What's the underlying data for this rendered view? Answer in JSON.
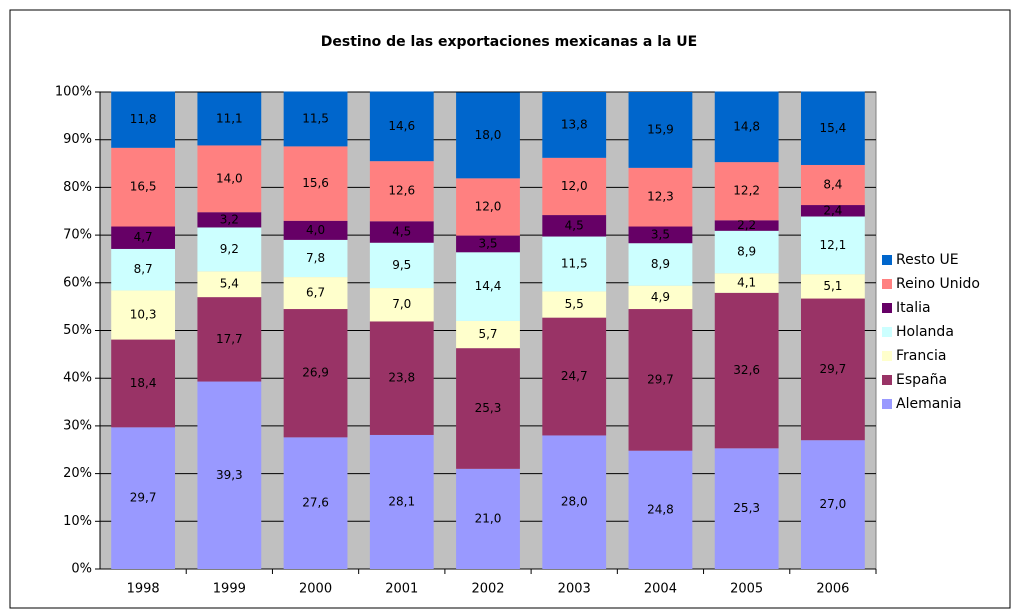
{
  "chart_data": {
    "type": "bar",
    "stacked": true,
    "title": "Destino de las exportaciones mexicanas a la UE",
    "categories": [
      "1998",
      "1999",
      "2000",
      "2001",
      "2002",
      "2003",
      "2004",
      "2005",
      "2006"
    ],
    "ylim": [
      0,
      100
    ],
    "yticks": [
      {
        "value": 0,
        "label": "0%"
      },
      {
        "value": 10,
        "label": "10%"
      },
      {
        "value": 20,
        "label": "20%"
      },
      {
        "value": 30,
        "label": "30%"
      },
      {
        "value": 40,
        "label": "40%"
      },
      {
        "value": 50,
        "label": "50%"
      },
      {
        "value": 60,
        "label": "60%"
      },
      {
        "value": 70,
        "label": "70%"
      },
      {
        "value": 80,
        "label": "80%"
      },
      {
        "value": 90,
        "label": "90%"
      },
      {
        "value": 100,
        "label": "100%"
      }
    ],
    "grid": true,
    "legend": "right",
    "series": [
      {
        "name": "Alemania",
        "color": "#9999ff",
        "values": [
          29.7,
          39.3,
          27.6,
          28.1,
          21.0,
          28.0,
          24.8,
          25.3,
          27.0
        ],
        "value_labels": [
          "29,7",
          "39,3",
          "27,6",
          "28,1",
          "21,0",
          "28,0",
          "24,8",
          "25,3",
          "27,0"
        ]
      },
      {
        "name": "España",
        "color": "#993366",
        "values": [
          18.4,
          17.7,
          26.9,
          23.8,
          25.3,
          24.7,
          29.7,
          32.6,
          29.7
        ],
        "value_labels": [
          "18,4",
          "17,7",
          "26,9",
          "23,8",
          "25,3",
          "24,7",
          "29,7",
          "32,6",
          "29,7"
        ]
      },
      {
        "name": "Francia",
        "color": "#ffffcc",
        "values": [
          10.3,
          5.4,
          6.7,
          7.0,
          5.7,
          5.5,
          4.9,
          4.1,
          5.1
        ],
        "value_labels": [
          "10,3",
          "5,4",
          "6,7",
          "7,0",
          "5,7",
          "5,5",
          "4,9",
          "4,1",
          "5,1"
        ]
      },
      {
        "name": "Holanda",
        "color": "#ccffff",
        "values": [
          8.7,
          9.2,
          7.8,
          9.5,
          14.4,
          11.5,
          8.9,
          8.9,
          12.1
        ],
        "value_labels": [
          "8,7",
          "9,2",
          "7,8",
          "9,5",
          "14,4",
          "11,5",
          "8,9",
          "8,9",
          "12,1"
        ]
      },
      {
        "name": "Italia",
        "color": "#660066",
        "values": [
          4.7,
          3.2,
          4.0,
          4.5,
          3.5,
          4.5,
          3.5,
          2.2,
          2.4
        ],
        "value_labels": [
          "4,7",
          "3,2",
          "4,0",
          "4,5",
          "3,5",
          "4,5",
          "3,5",
          "2,2",
          "2,4"
        ]
      },
      {
        "name": "Reino Unido",
        "color": "#ff8080",
        "values": [
          16.5,
          14.0,
          15.6,
          12.6,
          12.0,
          12.0,
          12.3,
          12.2,
          8.4
        ],
        "value_labels": [
          "16,5",
          "14,0",
          "15,6",
          "12,6",
          "12,0",
          "12,0",
          "12,3",
          "12,2",
          "8,4"
        ]
      },
      {
        "name": "Resto UE",
        "color": "#0066cc",
        "values": [
          11.8,
          11.1,
          11.5,
          14.6,
          18.0,
          13.8,
          15.9,
          14.8,
          15.4
        ],
        "value_labels": [
          "11,8",
          "11,1",
          "11,5",
          "14,6",
          "18,0",
          "13,8",
          "15,9",
          "14,8",
          "15,4"
        ]
      }
    ]
  }
}
